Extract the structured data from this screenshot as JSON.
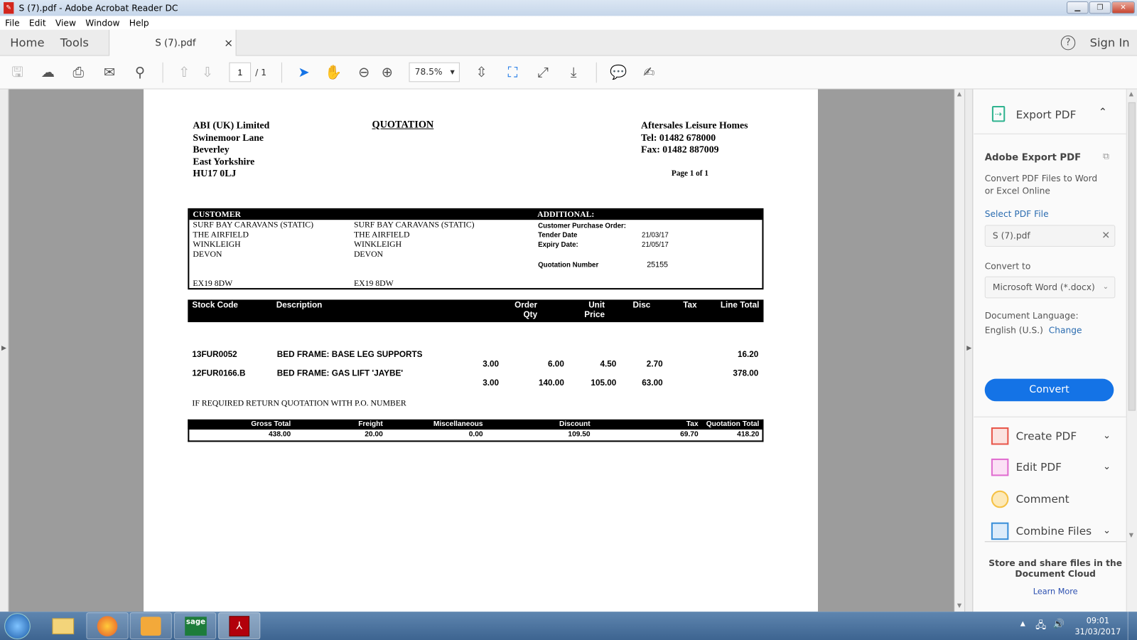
{
  "window": {
    "title": "S (7).pdf - Adobe Acrobat Reader DC",
    "minimize": "▁",
    "restore": "❐",
    "close": "✕"
  },
  "menu": [
    "File",
    "Edit",
    "View",
    "Window",
    "Help"
  ],
  "tabs": {
    "home": "Home",
    "tools": "Tools",
    "document": "S (7).pdf",
    "close": "×",
    "help": "?",
    "sign_in": "Sign In"
  },
  "toolbar": {
    "page_current": "1",
    "page_total": "/ 1",
    "zoom": "78.5%"
  },
  "document": {
    "company": [
      "ABI (UK) Limited",
      "Swinemoor Lane",
      "Beverley",
      "East Yorkshire",
      "HU17 0LJ"
    ],
    "title": "QUOTATION",
    "recipient": [
      "Aftersales Leisure Homes",
      "Tel: 01482 678000",
      "Fax: 01482 887009"
    ],
    "page_label": "Page 1 of 1",
    "customer_header": "CUSTOMER",
    "additional_header": "ADDITIONAL:",
    "customer_address": [
      "SURF BAY CARAVANS (STATIC)",
      "THE AIRFIELD",
      "WINKLEIGH",
      "DEVON",
      "EX19 8DW"
    ],
    "delivery_address": [
      "SURF BAY CARAVANS (STATIC)",
      "THE AIRFIELD",
      "WINKLEIGH",
      "DEVON",
      "EX19 8DW"
    ],
    "additional": {
      "po_label": "Customer Purchase Order:",
      "tender_label": "Tender Date",
      "tender_value": "21/03/17",
      "expiry_label": "Expiry Date:",
      "expiry_value": "21/05/17",
      "quote_label": "Quotation Number",
      "quote_value": "25155"
    },
    "columns": {
      "stock": "Stock Code",
      "desc": "Description",
      "qty1": "Order",
      "qty2": "Qty",
      "price1": "Unit",
      "price2": "Price",
      "disc": "Disc",
      "tax": "Tax",
      "total": "Line Total"
    },
    "lines": [
      {
        "code": "13FUR0052",
        "desc": "BED FRAME: BASE LEG SUPPORTS",
        "qty": "3.00",
        "price": "6.00",
        "disc": "4.50",
        "tax": "2.70",
        "total": "16.20"
      },
      {
        "code": "12FUR0166.B",
        "desc": "BED FRAME: GAS LIFT 'JAYBE'",
        "qty": "3.00",
        "price": "140.00",
        "disc": "105.00",
        "tax": "63.00",
        "total": "378.00"
      }
    ],
    "note": "IF REQUIRED RETURN QUOTATION WITH P.O. NUMBER",
    "totals_headers": {
      "gross": "Gross Total",
      "freight": "Freight",
      "misc": "Miscellaneous",
      "discount": "Discount",
      "tax": "Tax",
      "quote": "Quotation Total"
    },
    "totals": {
      "gross": "438.00",
      "freight": "20.00",
      "misc": "0.00",
      "discount": "109.50",
      "tax": "69.70",
      "quote": "418.20"
    }
  },
  "panel": {
    "export_title": "Export PDF",
    "adobe_export": "Adobe Export PDF",
    "desc1": "Convert PDF Files to Word",
    "desc2": "or Excel Online",
    "select_label": "Select PDF File",
    "file": "S (7).pdf",
    "convert_to": "Convert to",
    "format": "Microsoft Word (*.docx)",
    "lang_label": "Document Language:",
    "lang": "English (U.S.)",
    "change": "Change",
    "convert_button": "Convert",
    "tools": [
      "Create PDF",
      "Edit PDF",
      "Comment",
      "Combine Files"
    ],
    "cloud1": "Store and share files in the",
    "cloud2": "Document Cloud",
    "learn_more": "Learn More",
    "accent": "#1473e6"
  },
  "taskbar": {
    "time": "09:01",
    "date": "31/03/2017",
    "sage": "sage"
  }
}
